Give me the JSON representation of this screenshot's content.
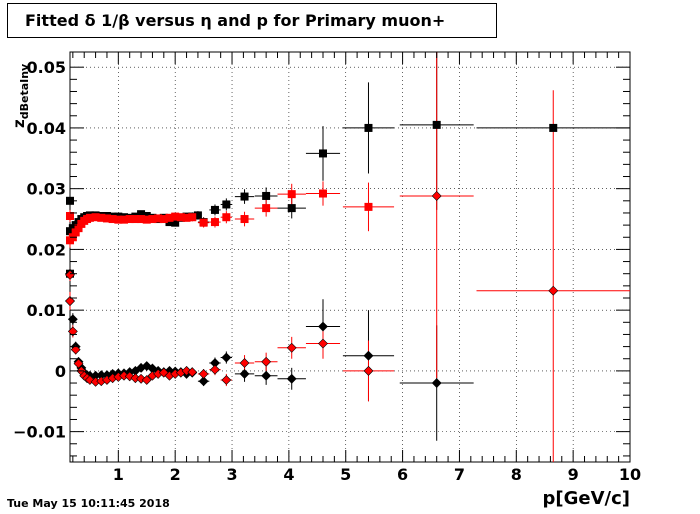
{
  "chart_data": {
    "type": "scatter",
    "title": "Fitted δ 1/β versus η and p for Primary muon+",
    "xlabel": "p[GeV/c]",
    "ylabel": "z_dBetaInv",
    "timestamp": "Tue May 15 10:11:45 2018",
    "xlim": [
      0.15,
      10
    ],
    "ylim": [
      -0.015,
      0.0525
    ],
    "grid": true,
    "x_ticks": [
      1,
      2,
      3,
      4,
      5,
      6,
      7,
      8,
      9,
      10
    ],
    "x_tick_labels": [
      "1",
      "2",
      "3",
      "4",
      "5",
      "6",
      "7",
      "8",
      "9",
      "10"
    ],
    "y_ticks": [
      -0.01,
      0,
      0.01,
      0.02,
      0.03,
      0.04,
      0.05
    ],
    "y_tick_labels": [
      "−0.01",
      "0",
      "0.01",
      "0.02",
      "0.03",
      "0.04",
      "0.05"
    ],
    "series": [
      {
        "color": "#000000",
        "marker": "square",
        "points": [
          {
            "x": 0.15,
            "y": 0.023,
            "ex": 0.02,
            "ey": 0.001
          },
          {
            "x": 0.2,
            "y": 0.0235,
            "ex": 0.02,
            "ey": 0.0008
          },
          {
            "x": 0.25,
            "y": 0.024,
            "ex": 0.02,
            "ey": 0.0006
          },
          {
            "x": 0.3,
            "y": 0.0245,
            "ex": 0.025,
            "ey": 0.0005
          },
          {
            "x": 0.35,
            "y": 0.025,
            "ex": 0.025,
            "ey": 0.0004
          },
          {
            "x": 0.4,
            "y": 0.0253,
            "ex": 0.025,
            "ey": 0.0003
          },
          {
            "x": 0.45,
            "y": 0.0255,
            "ex": 0.025,
            "ey": 0.0003
          },
          {
            "x": 0.5,
            "y": 0.0256,
            "ex": 0.025,
            "ey": 0.0003
          },
          {
            "x": 0.6,
            "y": 0.0256,
            "ex": 0.05,
            "ey": 0.0003
          },
          {
            "x": 0.7,
            "y": 0.0255,
            "ex": 0.05,
            "ey": 0.0003
          },
          {
            "x": 0.8,
            "y": 0.0255,
            "ex": 0.05,
            "ey": 0.0003
          },
          {
            "x": 0.9,
            "y": 0.0254,
            "ex": 0.05,
            "ey": 0.0003
          },
          {
            "x": 1.0,
            "y": 0.0254,
            "ex": 0.05,
            "ey": 0.0003
          },
          {
            "x": 1.1,
            "y": 0.0253,
            "ex": 0.05,
            "ey": 0.0003
          },
          {
            "x": 1.2,
            "y": 0.0252,
            "ex": 0.05,
            "ey": 0.0003
          },
          {
            "x": 1.3,
            "y": 0.0254,
            "ex": 0.05,
            "ey": 0.0003
          },
          {
            "x": 1.4,
            "y": 0.0258,
            "ex": 0.05,
            "ey": 0.0004
          },
          {
            "x": 1.5,
            "y": 0.0255,
            "ex": 0.05,
            "ey": 0.0004
          },
          {
            "x": 1.6,
            "y": 0.0252,
            "ex": 0.05,
            "ey": 0.0004
          },
          {
            "x": 1.7,
            "y": 0.025,
            "ex": 0.05,
            "ey": 0.0004
          },
          {
            "x": 1.8,
            "y": 0.0252,
            "ex": 0.05,
            "ey": 0.0005
          },
          {
            "x": 1.9,
            "y": 0.0245,
            "ex": 0.05,
            "ey": 0.0005
          },
          {
            "x": 2.0,
            "y": 0.0244,
            "ex": 0.05,
            "ey": 0.0005
          },
          {
            "x": 2.1,
            "y": 0.0252,
            "ex": 0.05,
            "ey": 0.0006
          },
          {
            "x": 2.2,
            "y": 0.0254,
            "ex": 0.05,
            "ey": 0.0006
          },
          {
            "x": 2.3,
            "y": 0.0254,
            "ex": 0.05,
            "ey": 0.0007
          },
          {
            "x": 2.4,
            "y": 0.0256,
            "ex": 0.05,
            "ey": 0.0007
          },
          {
            "x": 2.5,
            "y": 0.0245,
            "ex": 0.1,
            "ey": 0.0008
          },
          {
            "x": 2.7,
            "y": 0.0265,
            "ex": 0.1,
            "ey": 0.0009
          },
          {
            "x": 2.9,
            "y": 0.0274,
            "ex": 0.1,
            "ey": 0.001
          },
          {
            "x": 3.22,
            "y": 0.0287,
            "ex": 0.17,
            "ey": 0.0012
          },
          {
            "x": 3.6,
            "y": 0.0288,
            "ex": 0.2,
            "ey": 0.0014
          },
          {
            "x": 4.05,
            "y": 0.0268,
            "ex": 0.25,
            "ey": 0.0017
          },
          {
            "x": 4.6,
            "y": 0.0358,
            "ex": 0.3,
            "ey": 0.0045
          },
          {
            "x": 5.4,
            "y": 0.04,
            "ex": 0.45,
            "ey": 0.0075
          },
          {
            "x": 6.6,
            "y": 0.0405,
            "ex": 0.65,
            "ey": 0.014
          },
          {
            "x": 8.65,
            "y": 0.04,
            "ex": 1.35,
            "ey": 0.0
          },
          {
            "x": 0.15,
            "y": 0.028,
            "ex": 0.02,
            "ey": 0.001
          },
          {
            "x": 0.15,
            "y": 0.016,
            "ex": 0.02,
            "ey": 0.001
          }
        ]
      },
      {
        "color": "#ff0000",
        "marker": "square",
        "points": [
          {
            "x": 0.15,
            "y": 0.0215,
            "ex": 0.02,
            "ey": 0.0012
          },
          {
            "x": 0.2,
            "y": 0.022,
            "ex": 0.02,
            "ey": 0.001
          },
          {
            "x": 0.25,
            "y": 0.0228,
            "ex": 0.02,
            "ey": 0.0008
          },
          {
            "x": 0.3,
            "y": 0.0235,
            "ex": 0.025,
            "ey": 0.0006
          },
          {
            "x": 0.35,
            "y": 0.0242,
            "ex": 0.025,
            "ey": 0.0005
          },
          {
            "x": 0.4,
            "y": 0.0247,
            "ex": 0.025,
            "ey": 0.0004
          },
          {
            "x": 0.45,
            "y": 0.025,
            "ex": 0.025,
            "ey": 0.0003
          },
          {
            "x": 0.5,
            "y": 0.0252,
            "ex": 0.025,
            "ey": 0.0003
          },
          {
            "x": 0.6,
            "y": 0.0253,
            "ex": 0.05,
            "ey": 0.0003
          },
          {
            "x": 0.7,
            "y": 0.0252,
            "ex": 0.05,
            "ey": 0.0003
          },
          {
            "x": 0.8,
            "y": 0.0251,
            "ex": 0.05,
            "ey": 0.0003
          },
          {
            "x": 0.9,
            "y": 0.025,
            "ex": 0.05,
            "ey": 0.0003
          },
          {
            "x": 1.0,
            "y": 0.0249,
            "ex": 0.05,
            "ey": 0.0003
          },
          {
            "x": 1.1,
            "y": 0.0249,
            "ex": 0.05,
            "ey": 0.0003
          },
          {
            "x": 1.2,
            "y": 0.025,
            "ex": 0.05,
            "ey": 0.0003
          },
          {
            "x": 1.3,
            "y": 0.025,
            "ex": 0.05,
            "ey": 0.0003
          },
          {
            "x": 1.4,
            "y": 0.025,
            "ex": 0.05,
            "ey": 0.0004
          },
          {
            "x": 1.5,
            "y": 0.0249,
            "ex": 0.05,
            "ey": 0.0004
          },
          {
            "x": 1.6,
            "y": 0.025,
            "ex": 0.05,
            "ey": 0.0004
          },
          {
            "x": 1.7,
            "y": 0.0251,
            "ex": 0.05,
            "ey": 0.0004
          },
          {
            "x": 1.8,
            "y": 0.025,
            "ex": 0.05,
            "ey": 0.0005
          },
          {
            "x": 1.9,
            "y": 0.0252,
            "ex": 0.05,
            "ey": 0.0005
          },
          {
            "x": 2.0,
            "y": 0.0254,
            "ex": 0.05,
            "ey": 0.0005
          },
          {
            "x": 2.1,
            "y": 0.0253,
            "ex": 0.05,
            "ey": 0.0006
          },
          {
            "x": 2.2,
            "y": 0.0252,
            "ex": 0.05,
            "ey": 0.0006
          },
          {
            "x": 2.3,
            "y": 0.0253,
            "ex": 0.05,
            "ey": 0.0007
          },
          {
            "x": 2.5,
            "y": 0.0244,
            "ex": 0.1,
            "ey": 0.0008
          },
          {
            "x": 2.7,
            "y": 0.0245,
            "ex": 0.1,
            "ey": 0.0009
          },
          {
            "x": 2.9,
            "y": 0.0253,
            "ex": 0.1,
            "ey": 0.001
          },
          {
            "x": 3.22,
            "y": 0.025,
            "ex": 0.17,
            "ey": 0.0012
          },
          {
            "x": 3.6,
            "y": 0.0268,
            "ex": 0.2,
            "ey": 0.0014
          },
          {
            "x": 4.05,
            "y": 0.0291,
            "ex": 0.25,
            "ey": 0.0017
          },
          {
            "x": 4.6,
            "y": 0.0292,
            "ex": 0.3,
            "ey": 0.002
          },
          {
            "x": 5.4,
            "y": 0.027,
            "ex": 0.45,
            "ey": 0.004
          },
          {
            "x": 0.15,
            "y": 0.0255,
            "ex": 0.02,
            "ey": 0.001
          }
        ]
      },
      {
        "color": "#000000",
        "marker": "diamond",
        "points": [
          {
            "x": 0.15,
            "y": 0.016,
            "ex": 0.02,
            "ey": 0.0015
          },
          {
            "x": 0.2,
            "y": 0.0085,
            "ex": 0.02,
            "ey": 0.001
          },
          {
            "x": 0.25,
            "y": 0.004,
            "ex": 0.02,
            "ey": 0.0008
          },
          {
            "x": 0.3,
            "y": 0.0015,
            "ex": 0.025,
            "ey": 0.0006
          },
          {
            "x": 0.35,
            "y": 0.0005,
            "ex": 0.025,
            "ey": 0.0005
          },
          {
            "x": 0.4,
            "y": -0.0003,
            "ex": 0.025,
            "ey": 0.0004
          },
          {
            "x": 0.45,
            "y": -0.0007,
            "ex": 0.025,
            "ey": 0.0004
          },
          {
            "x": 0.5,
            "y": -0.0008,
            "ex": 0.025,
            "ey": 0.0003
          },
          {
            "x": 0.6,
            "y": -0.0008,
            "ex": 0.05,
            "ey": 0.0003
          },
          {
            "x": 0.7,
            "y": -0.0007,
            "ex": 0.05,
            "ey": 0.0003
          },
          {
            "x": 0.8,
            "y": -0.0007,
            "ex": 0.05,
            "ey": 0.0003
          },
          {
            "x": 0.9,
            "y": -0.0005,
            "ex": 0.05,
            "ey": 0.0003
          },
          {
            "x": 1.0,
            "y": -0.0004,
            "ex": 0.05,
            "ey": 0.0003
          },
          {
            "x": 1.1,
            "y": -0.0004,
            "ex": 0.05,
            "ey": 0.0003
          },
          {
            "x": 1.2,
            "y": -0.0002,
            "ex": 0.05,
            "ey": 0.0003
          },
          {
            "x": 1.3,
            "y": 0.0,
            "ex": 0.05,
            "ey": 0.0003
          },
          {
            "x": 1.4,
            "y": 0.0005,
            "ex": 0.05,
            "ey": 0.0004
          },
          {
            "x": 1.5,
            "y": 0.0008,
            "ex": 0.05,
            "ey": 0.0004
          },
          {
            "x": 1.6,
            "y": 0.0004,
            "ex": 0.05,
            "ey": 0.0004
          },
          {
            "x": 1.7,
            "y": 0.0,
            "ex": 0.05,
            "ey": 0.0005
          },
          {
            "x": 1.8,
            "y": -0.0002,
            "ex": 0.05,
            "ey": 0.0005
          },
          {
            "x": 1.9,
            "y": 0.0,
            "ex": 0.05,
            "ey": 0.0005
          },
          {
            "x": 2.0,
            "y": -0.0001,
            "ex": 0.05,
            "ey": 0.0006
          },
          {
            "x": 2.1,
            "y": -0.0002,
            "ex": 0.05,
            "ey": 0.0006
          },
          {
            "x": 2.2,
            "y": -0.0005,
            "ex": 0.05,
            "ey": 0.0007
          },
          {
            "x": 2.3,
            "y": -0.0003,
            "ex": 0.05,
            "ey": 0.0007
          },
          {
            "x": 2.5,
            "y": -0.0017,
            "ex": 0.1,
            "ey": 0.0008
          },
          {
            "x": 2.7,
            "y": 0.0013,
            "ex": 0.1,
            "ey": 0.0009
          },
          {
            "x": 2.9,
            "y": 0.0022,
            "ex": 0.1,
            "ey": 0.001
          },
          {
            "x": 3.22,
            "y": -0.0005,
            "ex": 0.17,
            "ey": 0.0013
          },
          {
            "x": 3.6,
            "y": -0.0008,
            "ex": 0.2,
            "ey": 0.0015
          },
          {
            "x": 4.05,
            "y": -0.0013,
            "ex": 0.25,
            "ey": 0.0018
          },
          {
            "x": 4.6,
            "y": 0.0073,
            "ex": 0.3,
            "ey": 0.0045
          },
          {
            "x": 5.4,
            "y": 0.0025,
            "ex": 0.45,
            "ey": 0.0075
          },
          {
            "x": 6.6,
            "y": -0.002,
            "ex": 0.65,
            "ey": 0.0095
          },
          {
            "x": 0.15,
            "y": 0.0115,
            "ex": 0.02,
            "ey": 0.001
          }
        ]
      },
      {
        "color": "#ff0000",
        "marker": "diamond",
        "points": [
          {
            "x": 0.15,
            "y": 0.0115,
            "ex": 0.02,
            "ey": 0.0015
          },
          {
            "x": 0.2,
            "y": 0.0065,
            "ex": 0.02,
            "ey": 0.001
          },
          {
            "x": 0.25,
            "y": 0.0035,
            "ex": 0.02,
            "ey": 0.0008
          },
          {
            "x": 0.3,
            "y": 0.0012,
            "ex": 0.025,
            "ey": 0.0006
          },
          {
            "x": 0.35,
            "y": 0.0,
            "ex": 0.025,
            "ey": 0.0005
          },
          {
            "x": 0.4,
            "y": -0.0008,
            "ex": 0.025,
            "ey": 0.0004
          },
          {
            "x": 0.45,
            "y": -0.0012,
            "ex": 0.025,
            "ey": 0.0004
          },
          {
            "x": 0.5,
            "y": -0.0015,
            "ex": 0.025,
            "ey": 0.0003
          },
          {
            "x": 0.6,
            "y": -0.0018,
            "ex": 0.05,
            "ey": 0.0003
          },
          {
            "x": 0.7,
            "y": -0.0017,
            "ex": 0.05,
            "ey": 0.0003
          },
          {
            "x": 0.8,
            "y": -0.0015,
            "ex": 0.05,
            "ey": 0.0003
          },
          {
            "x": 0.9,
            "y": -0.0012,
            "ex": 0.05,
            "ey": 0.0003
          },
          {
            "x": 1.0,
            "y": -0.001,
            "ex": 0.05,
            "ey": 0.0003
          },
          {
            "x": 1.1,
            "y": -0.0008,
            "ex": 0.05,
            "ey": 0.0003
          },
          {
            "x": 1.2,
            "y": -0.0009,
            "ex": 0.05,
            "ey": 0.0003
          },
          {
            "x": 1.3,
            "y": -0.0012,
            "ex": 0.05,
            "ey": 0.0003
          },
          {
            "x": 1.4,
            "y": -0.0013,
            "ex": 0.05,
            "ey": 0.0004
          },
          {
            "x": 1.5,
            "y": -0.0015,
            "ex": 0.05,
            "ey": 0.0004
          },
          {
            "x": 1.6,
            "y": -0.0008,
            "ex": 0.05,
            "ey": 0.0004
          },
          {
            "x": 1.7,
            "y": -0.0005,
            "ex": 0.05,
            "ey": 0.0005
          },
          {
            "x": 1.8,
            "y": -0.0003,
            "ex": 0.05,
            "ey": 0.0005
          },
          {
            "x": 1.9,
            "y": -0.0008,
            "ex": 0.05,
            "ey": 0.0005
          },
          {
            "x": 2.0,
            "y": -0.0005,
            "ex": 0.05,
            "ey": 0.0006
          },
          {
            "x": 2.1,
            "y": -0.0003,
            "ex": 0.05,
            "ey": 0.0006
          },
          {
            "x": 2.2,
            "y": 0.0,
            "ex": 0.05,
            "ey": 0.0007
          },
          {
            "x": 2.3,
            "y": -0.0002,
            "ex": 0.05,
            "ey": 0.0007
          },
          {
            "x": 2.5,
            "y": -0.0005,
            "ex": 0.1,
            "ey": 0.0008
          },
          {
            "x": 2.7,
            "y": 0.0002,
            "ex": 0.1,
            "ey": 0.0009
          },
          {
            "x": 2.9,
            "y": -0.0015,
            "ex": 0.1,
            "ey": 0.001
          },
          {
            "x": 3.22,
            "y": 0.0013,
            "ex": 0.17,
            "ey": 0.0013
          },
          {
            "x": 3.6,
            "y": 0.0015,
            "ex": 0.2,
            "ey": 0.0015
          },
          {
            "x": 4.05,
            "y": 0.0038,
            "ex": 0.25,
            "ey": 0.0018
          },
          {
            "x": 4.6,
            "y": 0.0045,
            "ex": 0.3,
            "ey": 0.0025
          },
          {
            "x": 5.4,
            "y": 0.0,
            "ex": 0.45,
            "ey": 0.005
          },
          {
            "x": 6.6,
            "y": 0.0288,
            "ex": 0.65,
            "ey": 0.03
          },
          {
            "x": 8.65,
            "y": 0.0132,
            "ex": 1.35,
            "ey": 0.033
          },
          {
            "x": 0.15,
            "y": 0.0158,
            "ex": 0.02,
            "ey": 0.001
          }
        ]
      }
    ]
  }
}
